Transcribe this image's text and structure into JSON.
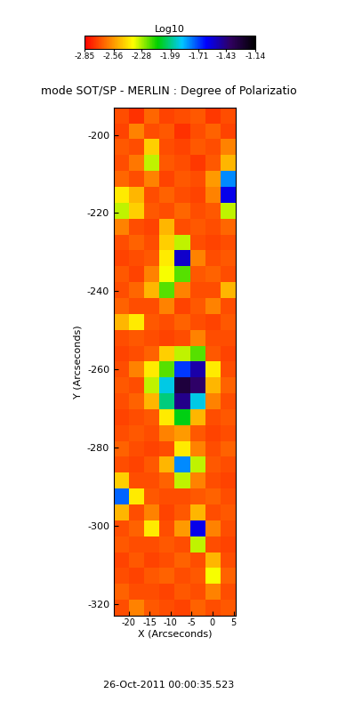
{
  "chart_data": {
    "type": "heatmap",
    "title": "mode SOT/SP - MERLIN : Degree of Polarizatio",
    "subtitle": "26-Oct-2011 00:00:35.523",
    "x_label": "X (Arcseconds)",
    "y_label": "Y (Arcseconds)",
    "xlim": [
      -23.5,
      5.5
    ],
    "ylim": [
      -323,
      -193
    ],
    "xticks": [
      -20,
      -15,
      -10,
      -5,
      0,
      5
    ],
    "yticks": [
      -320,
      -300,
      -280,
      -260,
      -240,
      -220,
      -200
    ],
    "colorbar": {
      "label": "Log10",
      "range": [
        -2.85,
        -1.14
      ],
      "ticks": [
        -2.85,
        -2.56,
        -2.28,
        -1.99,
        -1.71,
        -1.43,
        -1.14
      ]
    },
    "cells": [
      [
        -2.7,
        -2.75,
        -2.65,
        -2.72,
        -2.7,
        -2.68,
        -2.74,
        -2.7
      ],
      [
        -2.72,
        -2.6,
        -2.7,
        -2.68,
        -2.75,
        -2.7,
        -2.66,
        -2.72
      ],
      [
        -2.68,
        -2.7,
        -2.45,
        -2.7,
        -2.72,
        -2.68,
        -2.7,
        -2.6
      ],
      [
        -2.7,
        -2.62,
        -2.3,
        -2.68,
        -2.7,
        -2.74,
        -2.68,
        -2.5
      ],
      [
        -2.65,
        -2.7,
        -2.6,
        -2.72,
        -2.68,
        -2.7,
        -2.55,
        -1.8
      ],
      [
        -2.4,
        -2.5,
        -2.7,
        -2.66,
        -2.7,
        -2.72,
        -2.6,
        -1.6
      ],
      [
        -2.3,
        -2.45,
        -2.68,
        -2.7,
        -2.65,
        -2.7,
        -2.68,
        -2.3
      ],
      [
        -2.6,
        -2.7,
        -2.72,
        -2.5,
        -2.7,
        -2.68,
        -2.7,
        -2.65
      ],
      [
        -2.7,
        -2.66,
        -2.7,
        -2.45,
        -2.3,
        -2.7,
        -2.72,
        -2.7
      ],
      [
        -2.72,
        -2.7,
        -2.68,
        -2.4,
        -1.55,
        -2.6,
        -2.7,
        -2.68
      ],
      [
        -2.68,
        -2.72,
        -2.6,
        -2.35,
        -2.2,
        -2.68,
        -2.66,
        -2.7
      ],
      [
        -2.7,
        -2.65,
        -2.5,
        -2.2,
        -2.6,
        -2.7,
        -2.7,
        -2.5
      ],
      [
        -2.66,
        -2.7,
        -2.7,
        -2.6,
        -2.72,
        -2.68,
        -2.6,
        -2.7
      ],
      [
        -2.5,
        -2.4,
        -2.68,
        -2.7,
        -2.66,
        -2.7,
        -2.72,
        -2.68
      ],
      [
        -2.7,
        -2.68,
        -2.7,
        -2.72,
        -2.7,
        -2.6,
        -2.7,
        -2.7
      ],
      [
        -2.72,
        -2.7,
        -2.66,
        -2.45,
        -2.3,
        -2.2,
        -2.68,
        -2.72
      ],
      [
        -2.7,
        -2.6,
        -2.4,
        -2.2,
        -1.7,
        -1.5,
        -2.4,
        -2.7
      ],
      [
        -2.68,
        -2.7,
        -2.3,
        -1.9,
        -1.3,
        -1.4,
        -2.5,
        -2.66
      ],
      [
        -2.7,
        -2.66,
        -2.5,
        -2.0,
        -1.45,
        -1.9,
        -2.6,
        -2.7
      ],
      [
        -2.72,
        -2.7,
        -2.68,
        -2.4,
        -2.1,
        -2.5,
        -2.7,
        -2.68
      ],
      [
        -2.7,
        -2.68,
        -2.7,
        -2.6,
        -2.55,
        -2.68,
        -2.72,
        -2.7
      ],
      [
        -2.66,
        -2.7,
        -2.72,
        -2.7,
        -2.4,
        -2.6,
        -2.7,
        -2.66
      ],
      [
        -2.7,
        -2.72,
        -2.68,
        -2.5,
        -1.8,
        -2.3,
        -2.68,
        -2.7
      ],
      [
        -2.45,
        -2.7,
        -2.7,
        -2.66,
        -2.3,
        -2.6,
        -2.7,
        -2.72
      ],
      [
        -1.75,
        -2.4,
        -2.68,
        -2.7,
        -2.7,
        -2.68,
        -2.66,
        -2.7
      ],
      [
        -2.5,
        -2.7,
        -2.6,
        -2.72,
        -2.68,
        -2.5,
        -2.7,
        -2.68
      ],
      [
        -2.7,
        -2.66,
        -2.4,
        -2.7,
        -2.55,
        -1.6,
        -2.6,
        -2.7
      ],
      [
        -2.68,
        -2.7,
        -2.7,
        -2.68,
        -2.7,
        -2.3,
        -2.7,
        -2.72
      ],
      [
        -2.72,
        -2.68,
        -2.72,
        -2.7,
        -2.66,
        -2.7,
        -2.5,
        -2.7
      ],
      [
        -2.7,
        -2.72,
        -2.68,
        -2.66,
        -2.7,
        -2.68,
        -2.35,
        -2.66
      ],
      [
        -2.66,
        -2.7,
        -2.7,
        -2.72,
        -2.68,
        -2.7,
        -2.6,
        -2.7
      ],
      [
        -2.7,
        -2.6,
        -2.68,
        -2.7,
        -2.72,
        -2.66,
        -2.7,
        -2.68
      ]
    ]
  }
}
